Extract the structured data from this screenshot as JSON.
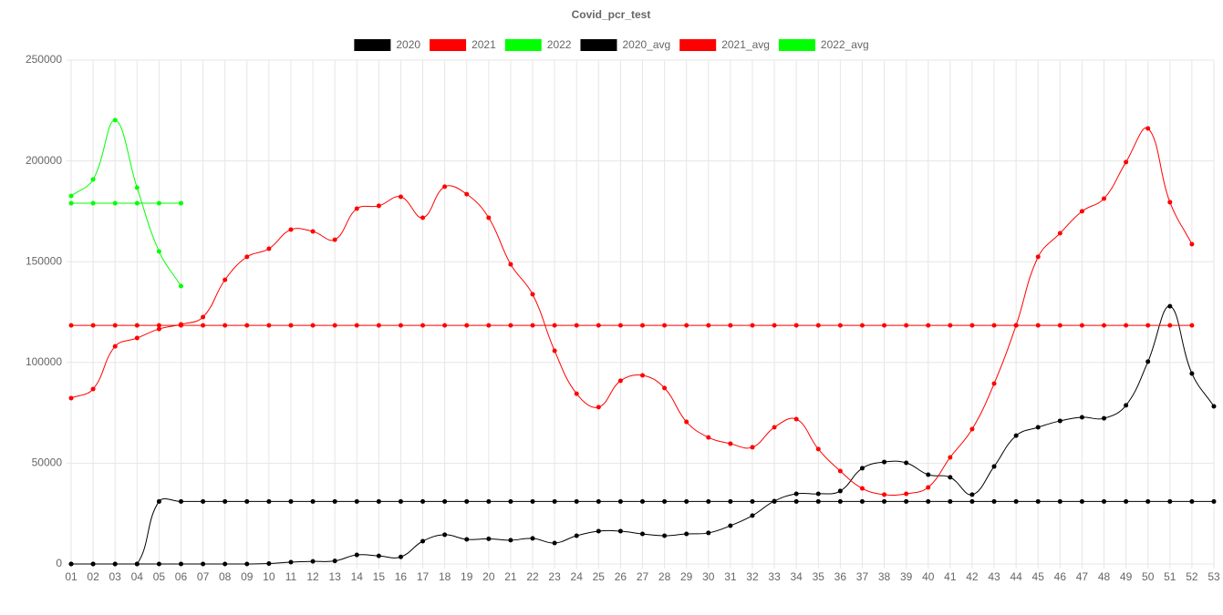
{
  "chart_data": {
    "type": "line",
    "title": "Covid_pcr_test",
    "categories": [
      "01",
      "02",
      "03",
      "04",
      "05",
      "06",
      "07",
      "08",
      "09",
      "10",
      "11",
      "12",
      "13",
      "14",
      "15",
      "16",
      "17",
      "18",
      "19",
      "20",
      "21",
      "22",
      "23",
      "24",
      "25",
      "26",
      "27",
      "28",
      "29",
      "30",
      "31",
      "32",
      "33",
      "34",
      "35",
      "36",
      "37",
      "38",
      "39",
      "40",
      "41",
      "42",
      "43",
      "44",
      "45",
      "46",
      "47",
      "48",
      "49",
      "50",
      "51",
      "52",
      "53"
    ],
    "ylim": [
      0,
      250000
    ],
    "yticks": [
      0,
      50000,
      100000,
      150000,
      200000,
      250000
    ],
    "grid": true,
    "legend": "top",
    "series": [
      {
        "name": "2020",
        "color": "#000000",
        "values": [
          0,
          0,
          0,
          0,
          0,
          0,
          0,
          0,
          0,
          200,
          900,
          1300,
          1500,
          4500,
          4000,
          3500,
          11300,
          14500,
          12200,
          12500,
          11800,
          12700,
          10400,
          14000,
          16300,
          16300,
          14900,
          14000,
          14900,
          15400,
          19000,
          24000,
          31200,
          34800,
          34800,
          36200,
          47500,
          50600,
          50200,
          44300,
          43000,
          34400,
          48400,
          63700,
          67800,
          71000,
          72800,
          72300,
          78700,
          100400,
          127900,
          94500,
          78200
        ]
      },
      {
        "name": "2021",
        "color": "#ff0000",
        "values": [
          82300,
          86800,
          108000,
          112100,
          116600,
          118900,
          122500,
          141000,
          152400,
          156400,
          165900,
          165000,
          160900,
          176300,
          177700,
          182200,
          171800,
          187200,
          183500,
          171800,
          148700,
          133800,
          105800,
          84500,
          77800,
          90900,
          93600,
          87300,
          70500,
          62800,
          59700,
          57900,
          67800,
          71900,
          57000,
          46100,
          37500,
          34400,
          34800,
          38000,
          52900,
          66900,
          89500,
          118400,
          152400,
          164100,
          175000,
          181300,
          199400,
          216100,
          179500,
          158700,
          null
        ]
      },
      {
        "name": "2022",
        "color": "#00ff00",
        "values": [
          182600,
          190800,
          220200,
          186700,
          155100,
          137900,
          null,
          null,
          null,
          null,
          null,
          null,
          null,
          null,
          null,
          null,
          null,
          null,
          null,
          null,
          null,
          null,
          null,
          null,
          null,
          null,
          null,
          null,
          null,
          null,
          null,
          null,
          null,
          null,
          null,
          null,
          null,
          null,
          null,
          null,
          null,
          null,
          null,
          null,
          null,
          null,
          null,
          null,
          null,
          null,
          null,
          null,
          null
        ]
      },
      {
        "name": "2020_avg",
        "color": "#000000",
        "values": [
          0,
          0,
          0,
          0,
          31000,
          31000,
          31000,
          31000,
          31000,
          31000,
          31000,
          31000,
          31000,
          31000,
          31000,
          31000,
          31000,
          31000,
          31000,
          31000,
          31000,
          31000,
          31000,
          31000,
          31000,
          31000,
          31000,
          31000,
          31000,
          31000,
          31000,
          31000,
          31000,
          31000,
          31000,
          31000,
          31000,
          31000,
          31000,
          31000,
          31000,
          31000,
          31000,
          31000,
          31000,
          31000,
          31000,
          31000,
          31000,
          31000,
          31000,
          31000,
          31000
        ]
      },
      {
        "name": "2021_avg",
        "color": "#ff0000",
        "values": [
          118400,
          118400,
          118400,
          118400,
          118400,
          118400,
          118400,
          118400,
          118400,
          118400,
          118400,
          118400,
          118400,
          118400,
          118400,
          118400,
          118400,
          118400,
          118400,
          118400,
          118400,
          118400,
          118400,
          118400,
          118400,
          118400,
          118400,
          118400,
          118400,
          118400,
          118400,
          118400,
          118400,
          118400,
          118400,
          118400,
          118400,
          118400,
          118400,
          118400,
          118400,
          118400,
          118400,
          118400,
          118400,
          118400,
          118400,
          118400,
          118400,
          118400,
          118400,
          118400,
          null
        ]
      },
      {
        "name": "2022_avg",
        "color": "#00ff00",
        "values": [
          179000,
          179000,
          179000,
          179000,
          179000,
          179000,
          null,
          null,
          null,
          null,
          null,
          null,
          null,
          null,
          null,
          null,
          null,
          null,
          null,
          null,
          null,
          null,
          null,
          null,
          null,
          null,
          null,
          null,
          null,
          null,
          null,
          null,
          null,
          null,
          null,
          null,
          null,
          null,
          null,
          null,
          null,
          null,
          null,
          null,
          null,
          null,
          null,
          null,
          null,
          null,
          null,
          null,
          null
        ]
      }
    ]
  }
}
